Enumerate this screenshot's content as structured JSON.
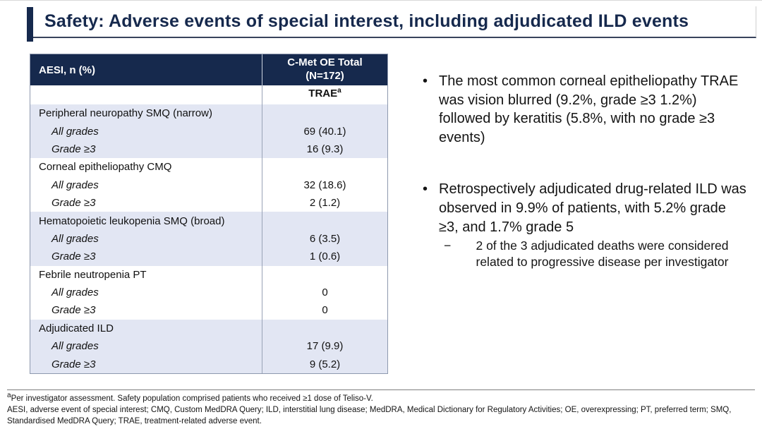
{
  "slide": {
    "title": "Safety: Adverse events of special interest, including adjudicated ILD events"
  },
  "table": {
    "col1_header": "AESI, n (%)",
    "col2_header_line1": "C-Met OE Total",
    "col2_header_line2": "(N=172)",
    "subheader": "TRAE",
    "subheader_sup": "a",
    "row_labels": {
      "all_grades": "All grades",
      "grade_ge3": "Grade ≥3"
    },
    "groups": [
      {
        "label": "Peripheral neuropathy SMQ (narrow)",
        "all_grades": "69 (40.1)",
        "grade_ge3": "16 (9.3)"
      },
      {
        "label": "Corneal epitheliopathy CMQ",
        "all_grades": "32 (18.6)",
        "grade_ge3": "2 (1.2)"
      },
      {
        "label": "Hematopoietic leukopenia SMQ (broad)",
        "all_grades": "6 (3.5)",
        "grade_ge3": "1 (0.6)"
      },
      {
        "label": "Febrile neutropenia PT",
        "all_grades": "0",
        "grade_ge3": "0"
      },
      {
        "label": "Adjudicated ILD",
        "all_grades": "17 (9.9)",
        "grade_ge3": "9 (5.2)"
      }
    ]
  },
  "bullets": {
    "marker": "•",
    "sub_marker": "−",
    "bullet1": "The most common corneal epitheliopathy TRAE was vision blurred (9.2%, grade ≥3 1.2%) followed by keratitis (5.8%, with no grade ≥3 events)",
    "bullet2": "Retrospectively adjudicated drug-related ILD was observed in 9.9% of patients, with 5.2% grade ≥3, and 1.7% grade 5",
    "sub_bullet2": "2 of the 3 adjudicated deaths were considered related to progressive disease per investigator"
  },
  "footer": {
    "note1_sup": "a",
    "note1": "Per investigator assessment. Safety population comprised patients who received ≥1 dose of Teliso-V.",
    "abbreviations": "AESI, adverse event of special interest; CMQ, Custom MedDRA Query; ILD, interstitial lung disease; MedDRA, Medical Dictionary for Regulatory Activities; OE, overexpressing; PT, preferred term; SMQ, Standardised MedDRA Query; TRAE, treatment-related adverse event."
  },
  "colors": {
    "accent_navy": "#16294d",
    "row_shade": "#e2e6f3",
    "table_border": "#8e99ae"
  }
}
